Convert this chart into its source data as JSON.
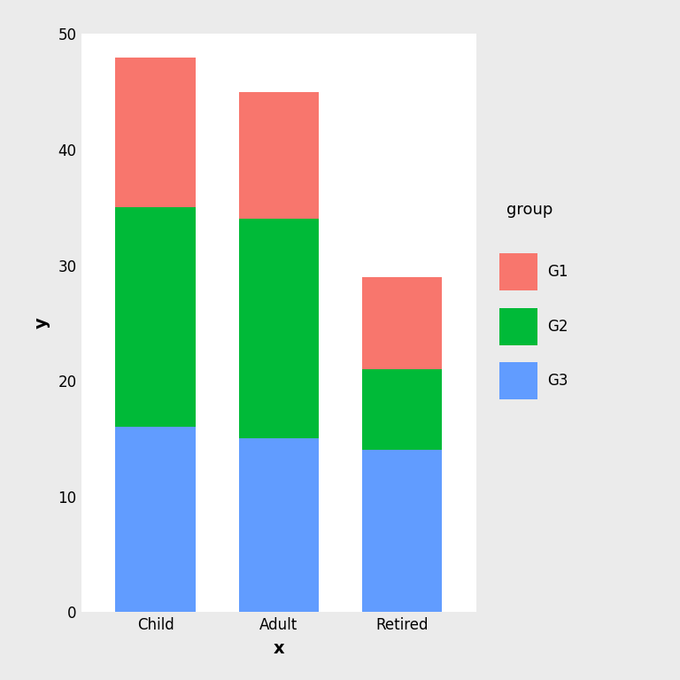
{
  "categories": [
    "Child",
    "Adult",
    "Retired"
  ],
  "G3_values": [
    16,
    15,
    14
  ],
  "G2_values": [
    19,
    19,
    7
  ],
  "G1_values": [
    13,
    11,
    8
  ],
  "colors": {
    "G1": "#F8766D",
    "G2": "#00BA38",
    "G3": "#619CFF"
  },
  "legend_title": "group",
  "xlabel": "x",
  "ylabel": "y",
  "ylim": [
    0,
    50
  ],
  "yticks": [
    0,
    10,
    20,
    30,
    40,
    50
  ],
  "outer_bg_color": "#EBEBEB",
  "panel_bg_color": "#FFFFFF",
  "grid_color": "#FFFFFF",
  "bar_width": 0.65,
  "axis_label_fontsize": 14,
  "tick_fontsize": 12,
  "legend_fontsize": 12,
  "legend_title_fontsize": 13
}
